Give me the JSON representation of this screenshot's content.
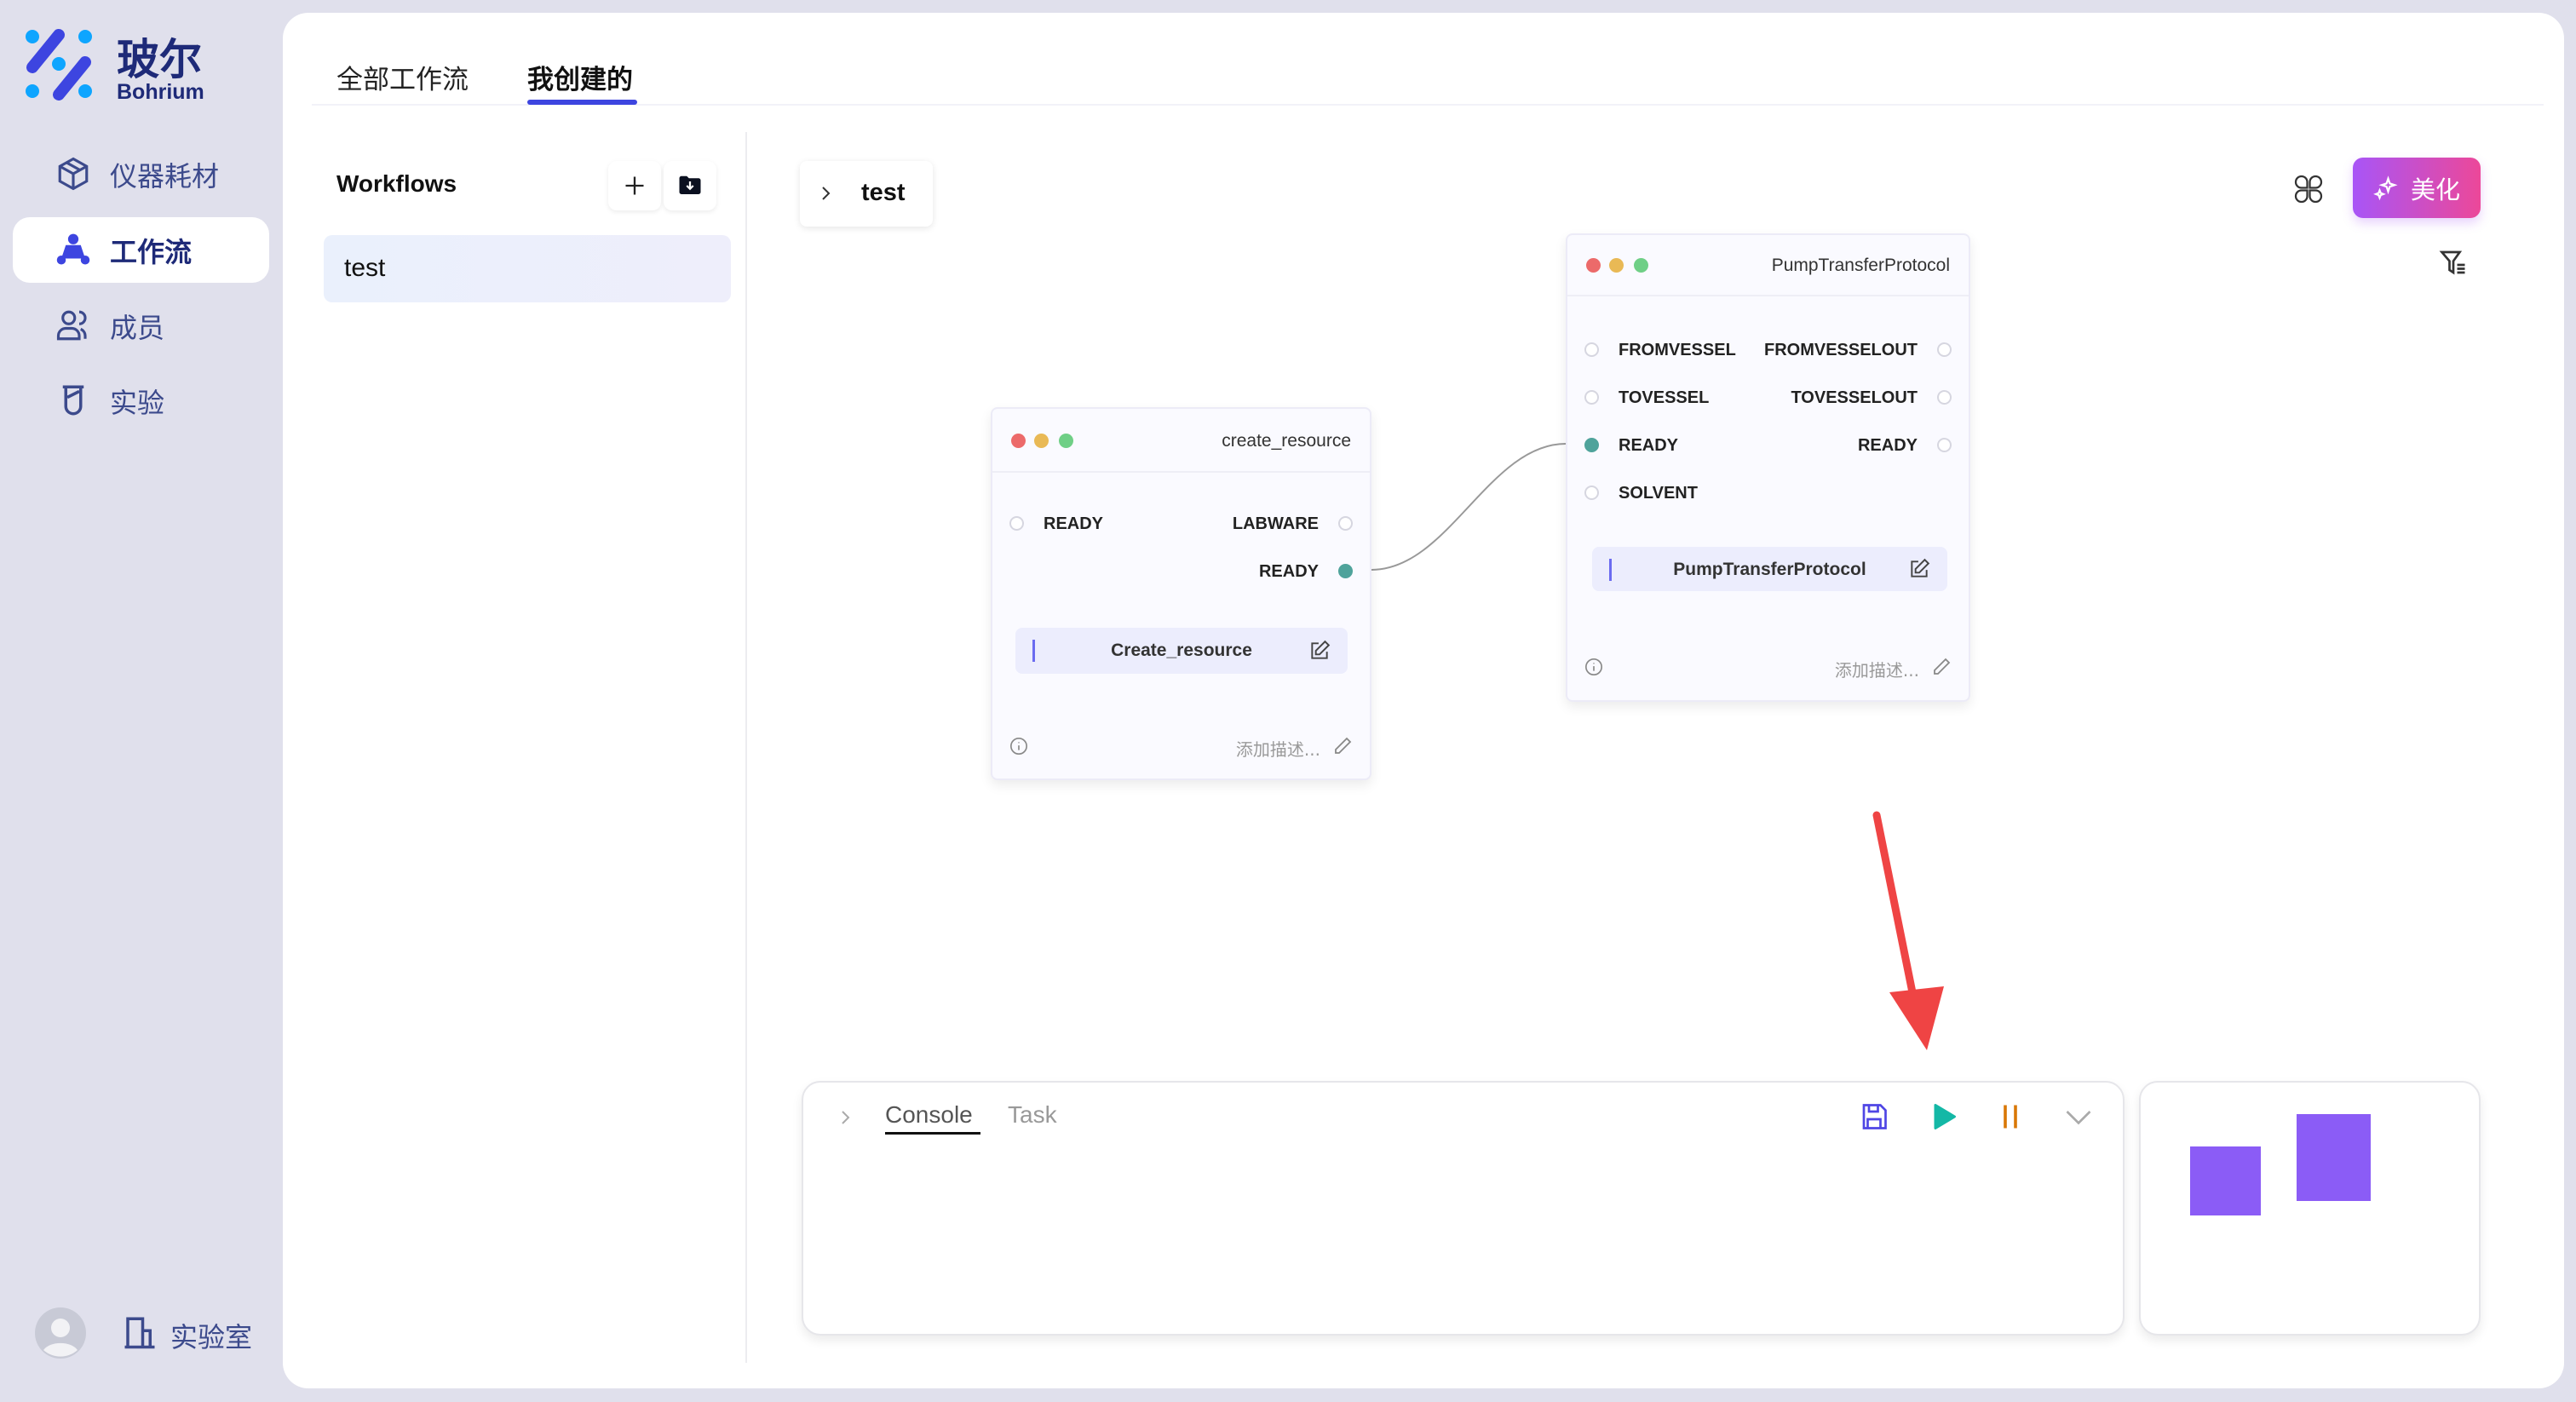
{
  "brand": {
    "name": "玻尔",
    "sub": "Bohrium"
  },
  "sidebar": {
    "items": [
      {
        "label": "仪器耗材",
        "icon": "box-icon"
      },
      {
        "label": "工作流",
        "icon": "workflow-icon",
        "active": true
      },
      {
        "label": "成员",
        "icon": "users-icon"
      },
      {
        "label": "实验",
        "icon": "beaker-icon"
      }
    ],
    "footer": {
      "lab_label": "实验室"
    }
  },
  "tabs": [
    {
      "label": "全部工作流"
    },
    {
      "label": "我创建的",
      "active": true
    }
  ],
  "workflows": {
    "title": "Workflows",
    "items": [
      "test"
    ]
  },
  "breadcrumb": {
    "label": "test"
  },
  "toolbar": {
    "beautify_label": "美化"
  },
  "nodes": [
    {
      "title": "create_resource",
      "inputs": [
        "READY"
      ],
      "outputs": [
        "LABWARE",
        "READY"
      ],
      "name": "Create_resource",
      "desc_placeholder": "添加描述..."
    },
    {
      "title": "PumpTransferProtocol",
      "inputs": [
        "FROMVESSEL",
        "TOVESSEL",
        "READY",
        "SOLVENT"
      ],
      "outputs": [
        "FROMVESSELOUT",
        "TOVESSELOUT",
        "READY"
      ],
      "name": "PumpTransferProtocol",
      "desc_placeholder": "添加描述..."
    }
  ],
  "console": {
    "tabs": [
      "Console",
      "Task"
    ],
    "active_tab": "Console"
  },
  "colors": {
    "accent": "#3d45e0",
    "play": "#14b8a6",
    "pause": "#d97706",
    "minimap": "#8b5cf6",
    "connected_port": "#4fa39b",
    "arrow": "#ef4444"
  }
}
